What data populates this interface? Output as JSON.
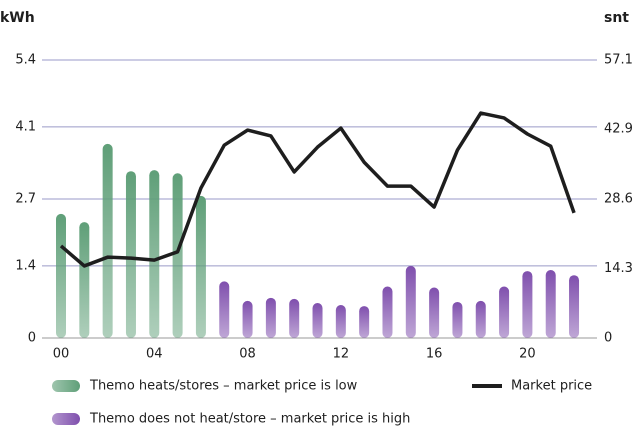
{
  "chart_data": {
    "type": "bar-line",
    "y_label": "kWh",
    "y2_label": "snt",
    "categories": [
      "00",
      null,
      null,
      null,
      "04",
      null,
      null,
      null,
      "08",
      null,
      null,
      null,
      "12",
      null,
      null,
      null,
      "16",
      null,
      null,
      null,
      "20",
      null,
      null
    ],
    "series": [
      {
        "name": "Themo heats/stores – market price is low",
        "color": "#5f9f78",
        "type": "bar",
        "values": [
          2.41,
          2.25,
          3.77,
          3.24,
          3.26,
          3.2,
          2.76,
          null,
          null,
          null,
          null,
          null,
          null,
          null,
          null,
          null,
          null,
          null,
          null,
          null,
          null,
          null,
          null
        ]
      },
      {
        "name": "Themo does not heat/store – market price is high",
        "color": "#7f4fad",
        "type": "bar",
        "values": [
          null,
          null,
          null,
          null,
          null,
          null,
          null,
          1.1,
          0.72,
          0.78,
          0.76,
          0.68,
          0.64,
          0.62,
          1.0,
          1.4,
          0.98,
          0.7,
          0.72,
          1.0,
          1.3,
          1.32,
          1.22
        ]
      },
      {
        "name": "Market price",
        "color": "#1e1e1e",
        "type": "line",
        "axis": "y2",
        "values": [
          18.9,
          14.8,
          16.6,
          16.4,
          16.0,
          17.7,
          30.8,
          39.6,
          42.7,
          41.5,
          34.1,
          39.2,
          43.1,
          36.1,
          31.2,
          31.2,
          26.9,
          38.6,
          46.2,
          45.2,
          41.9,
          39.4,
          25.7
        ]
      }
    ],
    "ylim": [
      0,
      5.4
    ],
    "yticks": [
      0,
      1.4,
      2.7,
      4.1,
      5.4
    ],
    "y2lim": [
      0,
      57.1
    ],
    "y2ticks": [
      0,
      14.3,
      28.6,
      42.9,
      57.1
    ],
    "grid": true
  }
}
